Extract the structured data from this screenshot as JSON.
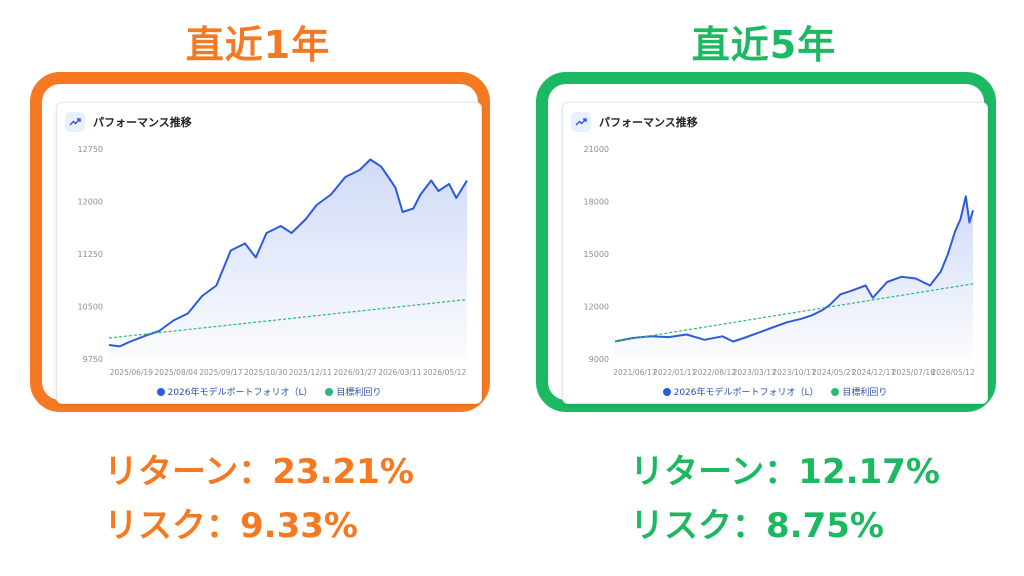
{
  "colors": {
    "orange": "#F47920",
    "green": "#1DB862",
    "line": "#2E5BDB",
    "target": "#2DB87A"
  },
  "left": {
    "title": "直近1年",
    "return_label": "リターン：23.21%",
    "risk_label": "リスク：9.33%",
    "card_title": "パフォーマンス推移",
    "card_icon": "trend-up-icon",
    "legend": {
      "portfolio": "2026年モデルポートフォリオ（L）",
      "target": "目標利回り"
    }
  },
  "right": {
    "title": "直近5年",
    "return_label": "リターン：12.17%",
    "risk_label": "リスク：8.75%",
    "card_title": "パフォーマンス推移",
    "card_icon": "trend-up-icon",
    "legend": {
      "portfolio": "2026年モデルポートフォリオ（L）",
      "target": "目標利回り"
    }
  },
  "chart_data": [
    {
      "type": "line",
      "ylim": [
        9750,
        12750
      ],
      "yticks": [
        9750,
        10500,
        11250,
        12000,
        12750
      ],
      "xticks": [
        "2025/06/19",
        "2025/08/04",
        "2025/09/17",
        "2025/10/30",
        "2025/12/11",
        "2026/01/27",
        "2026/03/11",
        "2026/05/12"
      ],
      "legend_position": "bottom",
      "series": [
        {
          "name": "2026年モデルポートフォリオ（L）",
          "style": "solid-area",
          "x": [
            0,
            0.03,
            0.06,
            0.1,
            0.14,
            0.18,
            0.22,
            0.26,
            0.3,
            0.34,
            0.38,
            0.41,
            0.44,
            0.48,
            0.51,
            0.55,
            0.58,
            0.62,
            0.66,
            0.7,
            0.73,
            0.76,
            0.8,
            0.82,
            0.85,
            0.87,
            0.9,
            0.92,
            0.95,
            0.97,
            1.0
          ],
          "values": [
            9950,
            9930,
            10000,
            10080,
            10150,
            10300,
            10400,
            10650,
            10800,
            11300,
            11400,
            11200,
            11550,
            11650,
            11550,
            11750,
            11950,
            12100,
            12350,
            12450,
            12600,
            12500,
            12200,
            11850,
            11900,
            12100,
            12300,
            12150,
            12250,
            12050,
            12300
          ]
        },
        {
          "name": "目標利回り",
          "style": "dashed",
          "x": [
            0,
            1
          ],
          "values": [
            10050,
            10600
          ]
        }
      ]
    },
    {
      "type": "line",
      "ylim": [
        9000,
        21000
      ],
      "yticks": [
        9000,
        12000,
        15000,
        18000,
        21000
      ],
      "xticks": [
        "2021/06/17",
        "2022/01/11",
        "2022/08/12",
        "2023/03/17",
        "2023/10/17",
        "2024/05/21",
        "2024/12/17",
        "2025/07/18",
        "2026/05/12"
      ],
      "legend_position": "bottom",
      "series": [
        {
          "name": "2026年モデルポートフォリオ（L）",
          "style": "solid-area",
          "x": [
            0,
            0.05,
            0.1,
            0.15,
            0.2,
            0.25,
            0.3,
            0.33,
            0.36,
            0.4,
            0.44,
            0.48,
            0.52,
            0.55,
            0.58,
            0.6,
            0.63,
            0.66,
            0.7,
            0.72,
            0.76,
            0.8,
            0.84,
            0.88,
            0.91,
            0.93,
            0.95,
            0.965,
            0.98,
            0.99,
            1.0
          ],
          "values": [
            10000,
            10200,
            10300,
            10250,
            10400,
            10100,
            10300,
            10000,
            10200,
            10500,
            10800,
            11100,
            11300,
            11500,
            11800,
            12100,
            12700,
            12900,
            13200,
            12500,
            13400,
            13700,
            13600,
            13200,
            14000,
            15000,
            16300,
            17000,
            18300,
            16800,
            17500
          ]
        },
        {
          "name": "目標利回り",
          "style": "dashed",
          "x": [
            0,
            1
          ],
          "values": [
            10000,
            13300
          ]
        }
      ]
    }
  ]
}
